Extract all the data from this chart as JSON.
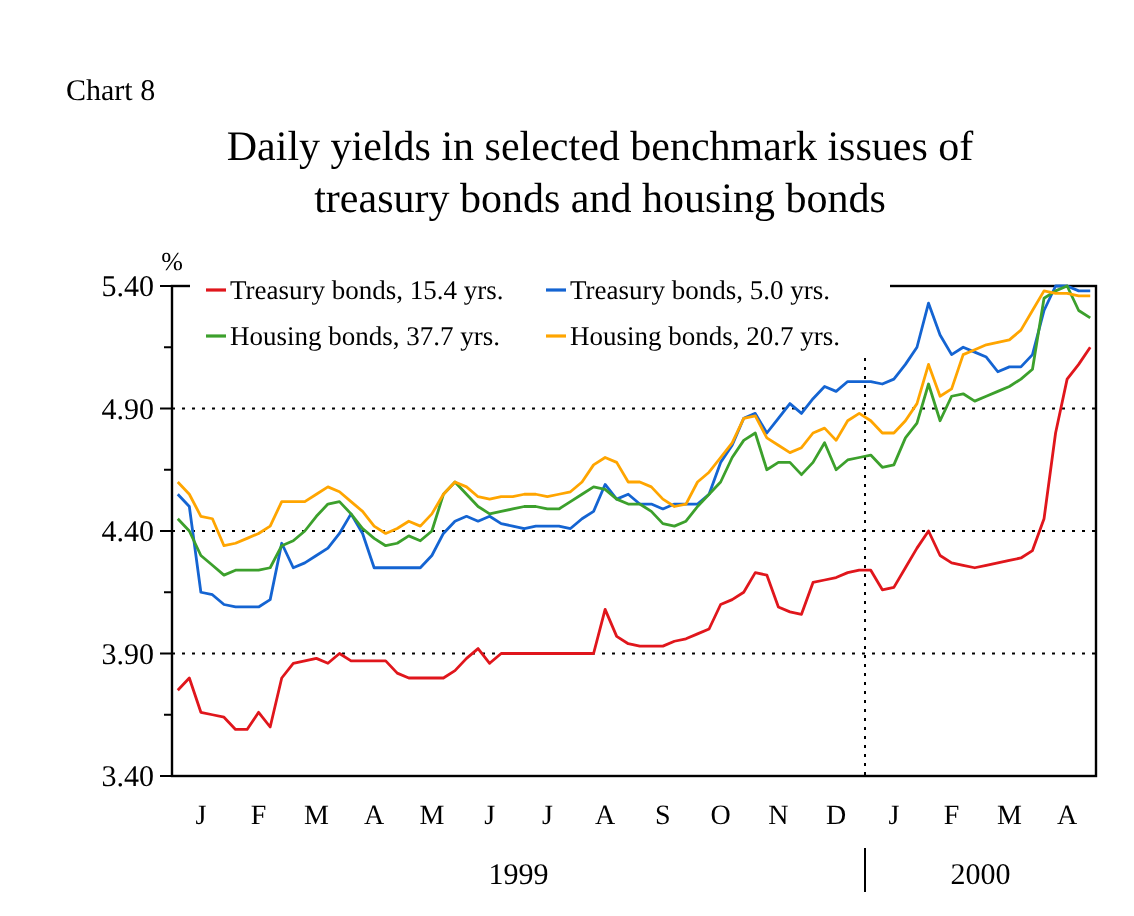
{
  "chart_data": {
    "type": "line",
    "subtitle": "Chart 8",
    "title": "Daily yields in selected benchmark issues of treasury bonds and housing bonds",
    "ylabel": "%",
    "annotations": [
      "1999",
      "2000"
    ],
    "categories": [
      null,
      null,
      "J",
      null,
      null,
      null,
      null,
      "F",
      null,
      null,
      null,
      null,
      "M",
      null,
      null,
      null,
      null,
      "A",
      null,
      null,
      null,
      null,
      "M",
      null,
      null,
      null,
      null,
      "J",
      null,
      null,
      null,
      null,
      "J",
      null,
      null,
      null,
      null,
      "A",
      null,
      null,
      null,
      null,
      "S",
      null,
      null,
      null,
      null,
      "O",
      null,
      null,
      null,
      null,
      "N",
      null,
      null,
      null,
      null,
      "D",
      null,
      null,
      null,
      null,
      "J",
      null,
      null,
      null,
      null,
      "F",
      null,
      null,
      null,
      null,
      "M",
      null,
      null,
      null,
      null,
      "A",
      null,
      null
    ],
    "ylim": [
      3.4,
      5.4
    ],
    "yticks": [
      {
        "value": 3.4,
        "label": "3.40"
      },
      {
        "value": 3.65,
        "label": null
      },
      {
        "value": 3.9,
        "label": "3.90"
      },
      {
        "value": 4.15,
        "label": null
      },
      {
        "value": 4.4,
        "label": "4.40"
      },
      {
        "value": 4.65,
        "label": null
      },
      {
        "value": 4.9,
        "label": "4.90"
      },
      {
        "value": 5.15,
        "label": null
      },
      {
        "value": 5.4,
        "label": "5.40"
      }
    ],
    "grid": "y",
    "legend": "top",
    "series": [
      {
        "name": "Treasury bonds, 15.4 yrs.",
        "color": "#e0161c",
        "values": [
          3.75,
          3.8,
          3.66,
          3.65,
          3.64,
          3.59,
          3.59,
          3.66,
          3.6,
          3.8,
          3.86,
          3.87,
          3.88,
          3.86,
          3.9,
          3.87,
          3.87,
          3.87,
          3.87,
          3.82,
          3.8,
          3.8,
          3.8,
          3.8,
          3.83,
          3.88,
          3.92,
          3.86,
          3.9,
          3.9,
          3.9,
          3.9,
          3.9,
          3.9,
          3.9,
          3.9,
          3.9,
          4.08,
          3.97,
          3.94,
          3.93,
          3.93,
          3.93,
          3.95,
          3.96,
          3.98,
          4.0,
          4.1,
          4.12,
          4.15,
          4.23,
          4.22,
          4.09,
          4.07,
          4.06,
          4.19,
          4.2,
          4.21,
          4.23,
          4.24,
          4.24,
          4.16,
          4.17,
          4.25,
          4.33,
          4.4,
          4.3,
          4.27,
          4.26,
          4.25,
          4.26,
          4.27,
          4.28,
          4.29,
          4.32,
          4.45,
          4.8,
          5.02,
          5.08,
          5.15
        ]
      },
      {
        "name": "Treasury bonds, 5.0 yrs.",
        "color": "#1464d2",
        "values": [
          4.55,
          4.5,
          4.15,
          4.14,
          4.1,
          4.09,
          4.09,
          4.09,
          4.12,
          4.35,
          4.25,
          4.27,
          4.3,
          4.33,
          4.39,
          4.47,
          4.39,
          4.25,
          4.25,
          4.25,
          4.25,
          4.25,
          4.3,
          4.39,
          4.44,
          4.46,
          4.44,
          4.46,
          4.43,
          4.42,
          4.41,
          4.42,
          4.42,
          4.42,
          4.41,
          4.45,
          4.48,
          4.59,
          4.53,
          4.55,
          4.51,
          4.51,
          4.49,
          4.51,
          4.51,
          4.51,
          4.55,
          4.68,
          4.75,
          4.86,
          4.88,
          4.8,
          4.86,
          4.92,
          4.88,
          4.94,
          4.99,
          4.97,
          5.01,
          5.01,
          5.01,
          5.0,
          5.02,
          5.08,
          5.15,
          5.33,
          5.2,
          5.12,
          5.15,
          5.13,
          5.11,
          5.05,
          5.07,
          5.07,
          5.12,
          5.3,
          5.4,
          5.4,
          5.38,
          5.38
        ]
      },
      {
        "name": "Housing bonds, 37.7 yrs.",
        "color": "#3ca02c",
        "values": [
          4.45,
          4.4,
          4.3,
          4.26,
          4.22,
          4.24,
          4.24,
          4.24,
          4.25,
          4.34,
          4.36,
          4.4,
          4.46,
          4.51,
          4.52,
          4.47,
          4.41,
          4.37,
          4.34,
          4.35,
          4.38,
          4.36,
          4.4,
          4.55,
          4.6,
          4.55,
          4.5,
          4.47,
          4.48,
          4.49,
          4.5,
          4.5,
          4.49,
          4.49,
          4.52,
          4.55,
          4.58,
          4.57,
          4.53,
          4.51,
          4.51,
          4.48,
          4.43,
          4.42,
          4.44,
          4.5,
          4.55,
          4.6,
          4.7,
          4.77,
          4.8,
          4.65,
          4.68,
          4.68,
          4.63,
          4.68,
          4.76,
          4.65,
          4.69,
          4.7,
          4.71,
          4.66,
          4.67,
          4.78,
          4.84,
          5.0,
          4.85,
          4.95,
          4.96,
          4.93,
          4.95,
          4.97,
          4.99,
          5.02,
          5.06,
          5.35,
          5.38,
          5.4,
          5.3,
          5.27
        ]
      },
      {
        "name": "Housing bonds, 20.7 yrs.",
        "color": "#ffa500",
        "values": [
          4.6,
          4.55,
          4.46,
          4.45,
          4.34,
          4.35,
          4.37,
          4.39,
          4.42,
          4.52,
          4.52,
          4.52,
          4.55,
          4.58,
          4.56,
          4.52,
          4.48,
          4.42,
          4.39,
          4.41,
          4.44,
          4.42,
          4.47,
          4.55,
          4.6,
          4.58,
          4.54,
          4.53,
          4.54,
          4.54,
          4.55,
          4.55,
          4.54,
          4.55,
          4.56,
          4.6,
          4.67,
          4.7,
          4.68,
          4.6,
          4.6,
          4.58,
          4.53,
          4.5,
          4.51,
          4.6,
          4.64,
          4.7,
          4.76,
          4.86,
          4.87,
          4.78,
          4.75,
          4.72,
          4.74,
          4.8,
          4.82,
          4.77,
          4.85,
          4.88,
          4.85,
          4.8,
          4.8,
          4.85,
          4.92,
          5.08,
          4.95,
          4.98,
          5.12,
          5.14,
          5.16,
          5.17,
          5.18,
          5.22,
          5.3,
          5.38,
          5.37,
          5.37,
          5.36,
          5.36
        ]
      }
    ]
  }
}
